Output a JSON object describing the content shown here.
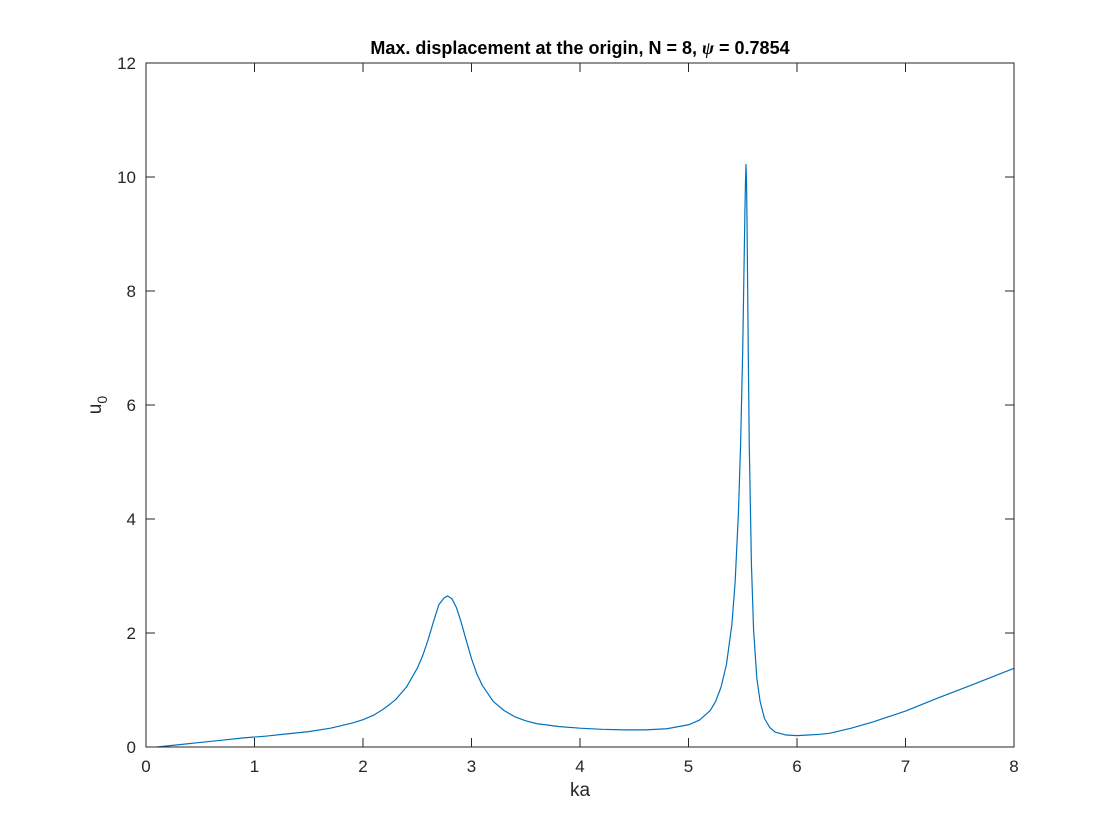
{
  "chart_data": {
    "type": "line",
    "title": {
      "prefix": "Max. displacement at the origin, N = 8, ",
      "symbol": "ψ",
      "suffix": " = 0.7854"
    },
    "xlabel": "ka",
    "ylabel": {
      "base": "u",
      "subscript": "0"
    },
    "xlim": [
      0,
      8
    ],
    "ylim": [
      0,
      12
    ],
    "xticks": [
      0,
      1,
      2,
      3,
      4,
      5,
      6,
      7,
      8
    ],
    "yticks": [
      0,
      2,
      4,
      6,
      8,
      10,
      12
    ],
    "grid": false,
    "line_color": "#0072BD",
    "series": [
      {
        "x": [
          0.1,
          0.3,
          0.5,
          0.7,
          0.9,
          1.1,
          1.3,
          1.5,
          1.7,
          1.9,
          2.0,
          2.1,
          2.2,
          2.3,
          2.4,
          2.5,
          2.55,
          2.6,
          2.65,
          2.7,
          2.75,
          2.78,
          2.82,
          2.86,
          2.9,
          2.95,
          3.0,
          3.05,
          3.1,
          3.2,
          3.3,
          3.4,
          3.5,
          3.6,
          3.8,
          4.0,
          4.2,
          4.4,
          4.6,
          4.8,
          5.0,
          5.1,
          5.2,
          5.25,
          5.3,
          5.35,
          5.4,
          5.43,
          5.46,
          5.48,
          5.5,
          5.51,
          5.52,
          5.525,
          5.53,
          5.535,
          5.54,
          5.55,
          5.56,
          5.58,
          5.6,
          5.63,
          5.66,
          5.7,
          5.75,
          5.8,
          5.9,
          6.0,
          6.1,
          6.2,
          6.3,
          6.5,
          6.7,
          7.0,
          7.3,
          7.6,
          8.0
        ],
        "y": [
          0.0,
          0.04,
          0.08,
          0.12,
          0.16,
          0.19,
          0.23,
          0.27,
          0.33,
          0.42,
          0.48,
          0.56,
          0.68,
          0.83,
          1.05,
          1.38,
          1.6,
          1.88,
          2.2,
          2.5,
          2.62,
          2.65,
          2.6,
          2.45,
          2.22,
          1.88,
          1.55,
          1.28,
          1.08,
          0.8,
          0.64,
          0.53,
          0.46,
          0.41,
          0.36,
          0.33,
          0.31,
          0.3,
          0.3,
          0.32,
          0.39,
          0.47,
          0.64,
          0.8,
          1.05,
          1.45,
          2.15,
          2.9,
          4.1,
          5.3,
          7.0,
          8.2,
          9.4,
          9.9,
          10.22,
          9.9,
          9.1,
          7.1,
          5.3,
          3.2,
          2.05,
          1.2,
          0.8,
          0.5,
          0.34,
          0.26,
          0.21,
          0.2,
          0.21,
          0.22,
          0.24,
          0.33,
          0.44,
          0.63,
          0.86,
          1.08,
          1.38
        ]
      }
    ]
  }
}
